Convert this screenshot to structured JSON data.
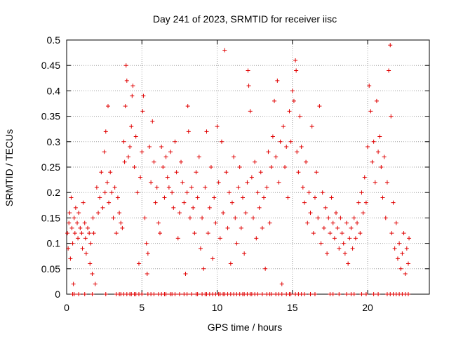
{
  "chart_data": {
    "type": "scatter",
    "title": "Day 241 of 2023, SRMTID for receiver iisc",
    "xlabel": "GPS time / hours",
    "ylabel": "SRMTID / TECUs",
    "xlim": [
      0,
      24.1
    ],
    "ylim": [
      0,
      0.5
    ],
    "xticks": [
      0,
      5,
      10,
      15,
      20
    ],
    "xtick_labels": [
      "0",
      "5",
      "10",
      "15",
      "20"
    ],
    "yticks": [
      0,
      0.05,
      0.1,
      0.15,
      0.2,
      0.25,
      0.3,
      0.35,
      0.4,
      0.45,
      0.5
    ],
    "ytick_labels": [
      "0",
      "0.05",
      "0.1",
      "0.15",
      "0.2",
      "0.25",
      "0.3",
      "0.35",
      "0.4",
      "0.45",
      "0.5"
    ],
    "grid": true,
    "marker": "+",
    "color": "#e00000",
    "series": [
      {
        "points": [
          [
            0.05,
            0.12
          ],
          [
            0.1,
            0.09
          ],
          [
            0.15,
            0.14
          ],
          [
            0.2,
            0.16
          ],
          [
            0.25,
            0.07
          ],
          [
            0.3,
            0.19
          ],
          [
            0.35,
            0.13
          ],
          [
            0.4,
            0.1
          ],
          [
            0.45,
            0.02
          ],
          [
            0.5,
            0.15
          ],
          [
            0.55,
            0.12
          ],
          [
            0.6,
            0.17
          ],
          [
            0.7,
            0.14
          ],
          [
            0.75,
            0.11
          ],
          [
            0.8,
            0.16
          ],
          [
            0.9,
            0.13
          ],
          [
            1.0,
            0.12
          ],
          [
            1.05,
            0.09
          ],
          [
            1.1,
            0.18
          ],
          [
            1.2,
            0.14
          ],
          [
            1.25,
            0.11
          ],
          [
            1.3,
            0.08
          ],
          [
            1.4,
            0.13
          ],
          [
            1.5,
            0.12
          ],
          [
            1.55,
            0.06
          ],
          [
            1.6,
            0.1
          ],
          [
            1.7,
            0.04
          ],
          [
            1.75,
            0.15
          ],
          [
            1.8,
            0.12
          ],
          [
            1.9,
            0.02
          ],
          [
            2.0,
            0.21
          ],
          [
            2.1,
            0.16
          ],
          [
            2.2,
            0.19
          ],
          [
            2.3,
            0.24
          ],
          [
            2.4,
            0.17
          ],
          [
            2.5,
            0.28
          ],
          [
            2.55,
            0.2
          ],
          [
            2.6,
            0.32
          ],
          [
            2.7,
            0.22
          ],
          [
            2.75,
            0.37
          ],
          [
            2.8,
            0.18
          ],
          [
            2.9,
            0.24
          ],
          [
            3.0,
            0.2
          ],
          [
            3.1,
            0.15
          ],
          [
            3.2,
            0.21
          ],
          [
            3.3,
            0.12
          ],
          [
            3.4,
            0.19
          ],
          [
            3.5,
            0.16
          ],
          [
            3.6,
            0.14
          ],
          [
            3.7,
            0.13
          ],
          [
            3.8,
            0.3
          ],
          [
            3.85,
            0.26
          ],
          [
            3.9,
            0.37
          ],
          [
            3.95,
            0.45
          ],
          [
            4.0,
            0.42
          ],
          [
            4.1,
            0.27
          ],
          [
            4.2,
            0.29
          ],
          [
            4.3,
            0.33
          ],
          [
            4.35,
            0.39
          ],
          [
            4.4,
            0.41
          ],
          [
            4.5,
            0.25
          ],
          [
            4.6,
            0.31
          ],
          [
            4.7,
            0.2
          ],
          [
            4.8,
            0.06
          ],
          [
            4.9,
            0.23
          ],
          [
            5.0,
            0.28
          ],
          [
            5.05,
            0.36
          ],
          [
            5.1,
            0.39
          ],
          [
            5.2,
            0.15
          ],
          [
            5.3,
            0.1
          ],
          [
            5.35,
            0.04
          ],
          [
            5.4,
            0.08
          ],
          [
            5.5,
            0.29
          ],
          [
            5.6,
            0.22
          ],
          [
            5.7,
            0.34
          ],
          [
            5.8,
            0.26
          ],
          [
            5.9,
            0.18
          ],
          [
            6.0,
            0.21
          ],
          [
            6.1,
            0.14
          ],
          [
            6.2,
            0.12
          ],
          [
            6.3,
            0.29
          ],
          [
            6.4,
            0.25
          ],
          [
            6.5,
            0.19
          ],
          [
            6.6,
            0.27
          ],
          [
            6.7,
            0.23
          ],
          [
            6.8,
            0.21
          ],
          [
            6.9,
            0.28
          ],
          [
            7.0,
            0.2
          ],
          [
            7.1,
            0.17
          ],
          [
            7.2,
            0.3
          ],
          [
            7.3,
            0.24
          ],
          [
            7.4,
            0.11
          ],
          [
            7.5,
            0.16
          ],
          [
            7.6,
            0.26
          ],
          [
            7.7,
            0.22
          ],
          [
            7.8,
            0.18
          ],
          [
            7.9,
            0.04
          ],
          [
            8.0,
            0.2
          ],
          [
            8.05,
            0.37
          ],
          [
            8.1,
            0.32
          ],
          [
            8.2,
            0.15
          ],
          [
            8.3,
            0.21
          ],
          [
            8.4,
            0.17
          ],
          [
            8.5,
            0.12
          ],
          [
            8.6,
            0.24
          ],
          [
            8.7,
            0.19
          ],
          [
            8.8,
            0.27
          ],
          [
            8.9,
            0.09
          ],
          [
            9.0,
            0.15
          ],
          [
            9.1,
            0.05
          ],
          [
            9.2,
            0.21
          ],
          [
            9.3,
            0.32
          ],
          [
            9.4,
            0.12
          ],
          [
            9.5,
            0.17
          ],
          [
            9.6,
            0.25
          ],
          [
            9.7,
            0.07
          ],
          [
            9.8,
            0.19
          ],
          [
            9.9,
            0.14
          ],
          [
            10.0,
            0.33
          ],
          [
            10.1,
            0.22
          ],
          [
            10.2,
            0.11
          ],
          [
            10.3,
            0.3
          ],
          [
            10.4,
            0.16
          ],
          [
            10.5,
            0.48
          ],
          [
            10.6,
            0.24
          ],
          [
            10.7,
            0.13
          ],
          [
            10.8,
            0.2
          ],
          [
            10.9,
            0.06
          ],
          [
            11.0,
            0.18
          ],
          [
            11.1,
            0.27
          ],
          [
            11.2,
            0.15
          ],
          [
            11.3,
            0.1
          ],
          [
            11.4,
            0.21
          ],
          [
            11.5,
            0.25
          ],
          [
            11.6,
            0.13
          ],
          [
            11.7,
            0.19
          ],
          [
            11.8,
            0.08
          ],
          [
            11.9,
            0.16
          ],
          [
            12.0,
            0.22
          ],
          [
            12.05,
            0.44
          ],
          [
            12.1,
            0.41
          ],
          [
            12.2,
            0.36
          ],
          [
            12.3,
            0.23
          ],
          [
            12.4,
            0.15
          ],
          [
            12.5,
            0.26
          ],
          [
            12.6,
            0.11
          ],
          [
            12.7,
            0.2
          ],
          [
            12.8,
            0.17
          ],
          [
            12.9,
            0.24
          ],
          [
            13.0,
            0.13
          ],
          [
            13.1,
            0.19
          ],
          [
            13.2,
            0.05
          ],
          [
            13.3,
            0.21
          ],
          [
            13.4,
            0.28
          ],
          [
            13.5,
            0.14
          ],
          [
            13.6,
            0.25
          ],
          [
            13.7,
            0.31
          ],
          [
            13.8,
            0.38
          ],
          [
            13.9,
            0.27
          ],
          [
            14.0,
            0.42
          ],
          [
            14.1,
            0.22
          ],
          [
            14.2,
            0.3
          ],
          [
            14.3,
            0.02
          ],
          [
            14.4,
            0.33
          ],
          [
            14.5,
            0.25
          ],
          [
            14.6,
            0.29
          ],
          [
            14.7,
            0.19
          ],
          [
            14.8,
            0.36
          ],
          [
            14.9,
            0.3
          ],
          [
            15.0,
            0.4
          ],
          [
            15.1,
            0.38
          ],
          [
            15.2,
            0.46
          ],
          [
            15.25,
            0.44
          ],
          [
            15.3,
            0.28
          ],
          [
            15.4,
            0.24
          ],
          [
            15.5,
            0.35
          ],
          [
            15.6,
            0.29
          ],
          [
            15.7,
            0.21
          ],
          [
            15.8,
            0.18
          ],
          [
            15.9,
            0.26
          ],
          [
            16.0,
            0.14
          ],
          [
            16.1,
            0.2
          ],
          [
            16.2,
            0.16
          ],
          [
            16.3,
            0.33
          ],
          [
            16.4,
            0.12
          ],
          [
            16.5,
            0.19
          ],
          [
            16.6,
            0.24
          ],
          [
            16.7,
            0.15
          ],
          [
            16.8,
            0.37
          ],
          [
            16.9,
            0.1
          ],
          [
            17.0,
            0.2
          ],
          [
            17.1,
            0.13
          ],
          [
            17.2,
            0.17
          ],
          [
            17.3,
            0.08
          ],
          [
            17.4,
            0.15
          ],
          [
            17.5,
            0.12
          ],
          [
            17.6,
            0.19
          ],
          [
            17.7,
            0.14
          ],
          [
            17.8,
            0.11
          ],
          [
            17.9,
            0.16
          ],
          [
            18.0,
            0.13
          ],
          [
            18.1,
            0.09
          ],
          [
            18.2,
            0.15
          ],
          [
            18.3,
            0.12
          ],
          [
            18.4,
            0.1
          ],
          [
            18.5,
            0.08
          ],
          [
            18.6,
            0.14
          ],
          [
            18.7,
            0.06
          ],
          [
            18.8,
            0.11
          ],
          [
            18.9,
            0.13
          ],
          [
            19.0,
            0.09
          ],
          [
            19.1,
            0.15
          ],
          [
            19.2,
            0.11
          ],
          [
            19.3,
            0.14
          ],
          [
            19.4,
            0.18
          ],
          [
            19.5,
            0.12
          ],
          [
            19.6,
            0.2
          ],
          [
            19.7,
            0.16
          ],
          [
            19.8,
            0.23
          ],
          [
            19.9,
            0.18
          ],
          [
            20.0,
            0.29
          ],
          [
            20.1,
            0.41
          ],
          [
            20.2,
            0.36
          ],
          [
            20.3,
            0.26
          ],
          [
            20.4,
            0.3
          ],
          [
            20.5,
            0.22
          ],
          [
            20.6,
            0.38
          ],
          [
            20.7,
            0.28
          ],
          [
            20.8,
            0.31
          ],
          [
            20.9,
            0.25
          ],
          [
            21.0,
            0.19
          ],
          [
            21.1,
            0.27
          ],
          [
            21.2,
            0.15
          ],
          [
            21.3,
            0.22
          ],
          [
            21.4,
            0.44
          ],
          [
            21.5,
            0.49
          ],
          [
            21.55,
            0.35
          ],
          [
            21.6,
            0.12
          ],
          [
            21.7,
            0.18
          ],
          [
            21.8,
            0.09
          ],
          [
            21.9,
            0.14
          ],
          [
            22.0,
            0.07
          ],
          [
            22.1,
            0.1
          ],
          [
            22.2,
            0.05
          ],
          [
            22.3,
            0.08
          ],
          [
            22.4,
            0.12
          ],
          [
            22.5,
            0.04
          ],
          [
            22.6,
            0.09
          ],
          [
            22.7,
            0.06
          ],
          [
            22.75,
            0.11
          ]
        ]
      }
    ],
    "zero_points_x": [
      0.4,
      0.5,
      0.8,
      1.2,
      1.7,
      2.6,
      3.3,
      3.5,
      3.6,
      3.8,
      4.0,
      4.2,
      4.3,
      4.5,
      4.6,
      4.8,
      5.0,
      5.4,
      5.6,
      5.8,
      6.1,
      6.3,
      6.5,
      6.6,
      6.9,
      7.0,
      7.2,
      7.5,
      7.8,
      8.0,
      8.3,
      8.6,
      8.7,
      9.0,
      9.2,
      9.3,
      9.5,
      9.7,
      9.9,
      10.1,
      10.2,
      10.4,
      10.5,
      10.7,
      10.9,
      11.1,
      11.3,
      11.5,
      11.7,
      11.8,
      12.0,
      12.2,
      12.3,
      12.5,
      12.7,
      13.0,
      13.3,
      13.5,
      13.6,
      13.9,
      14.1,
      14.3,
      14.6,
      14.8,
      14.9,
      15.2,
      15.4,
      15.6,
      15.8,
      16.2,
      16.5,
      17.5,
      17.7,
      18.1,
      18.6,
      18.9,
      19.1,
      19.6,
      19.9,
      20.4,
      20.7,
      21.3,
      21.5,
      21.7,
      21.9,
      22.1,
      22.3,
      22.5,
      22.7
    ]
  }
}
